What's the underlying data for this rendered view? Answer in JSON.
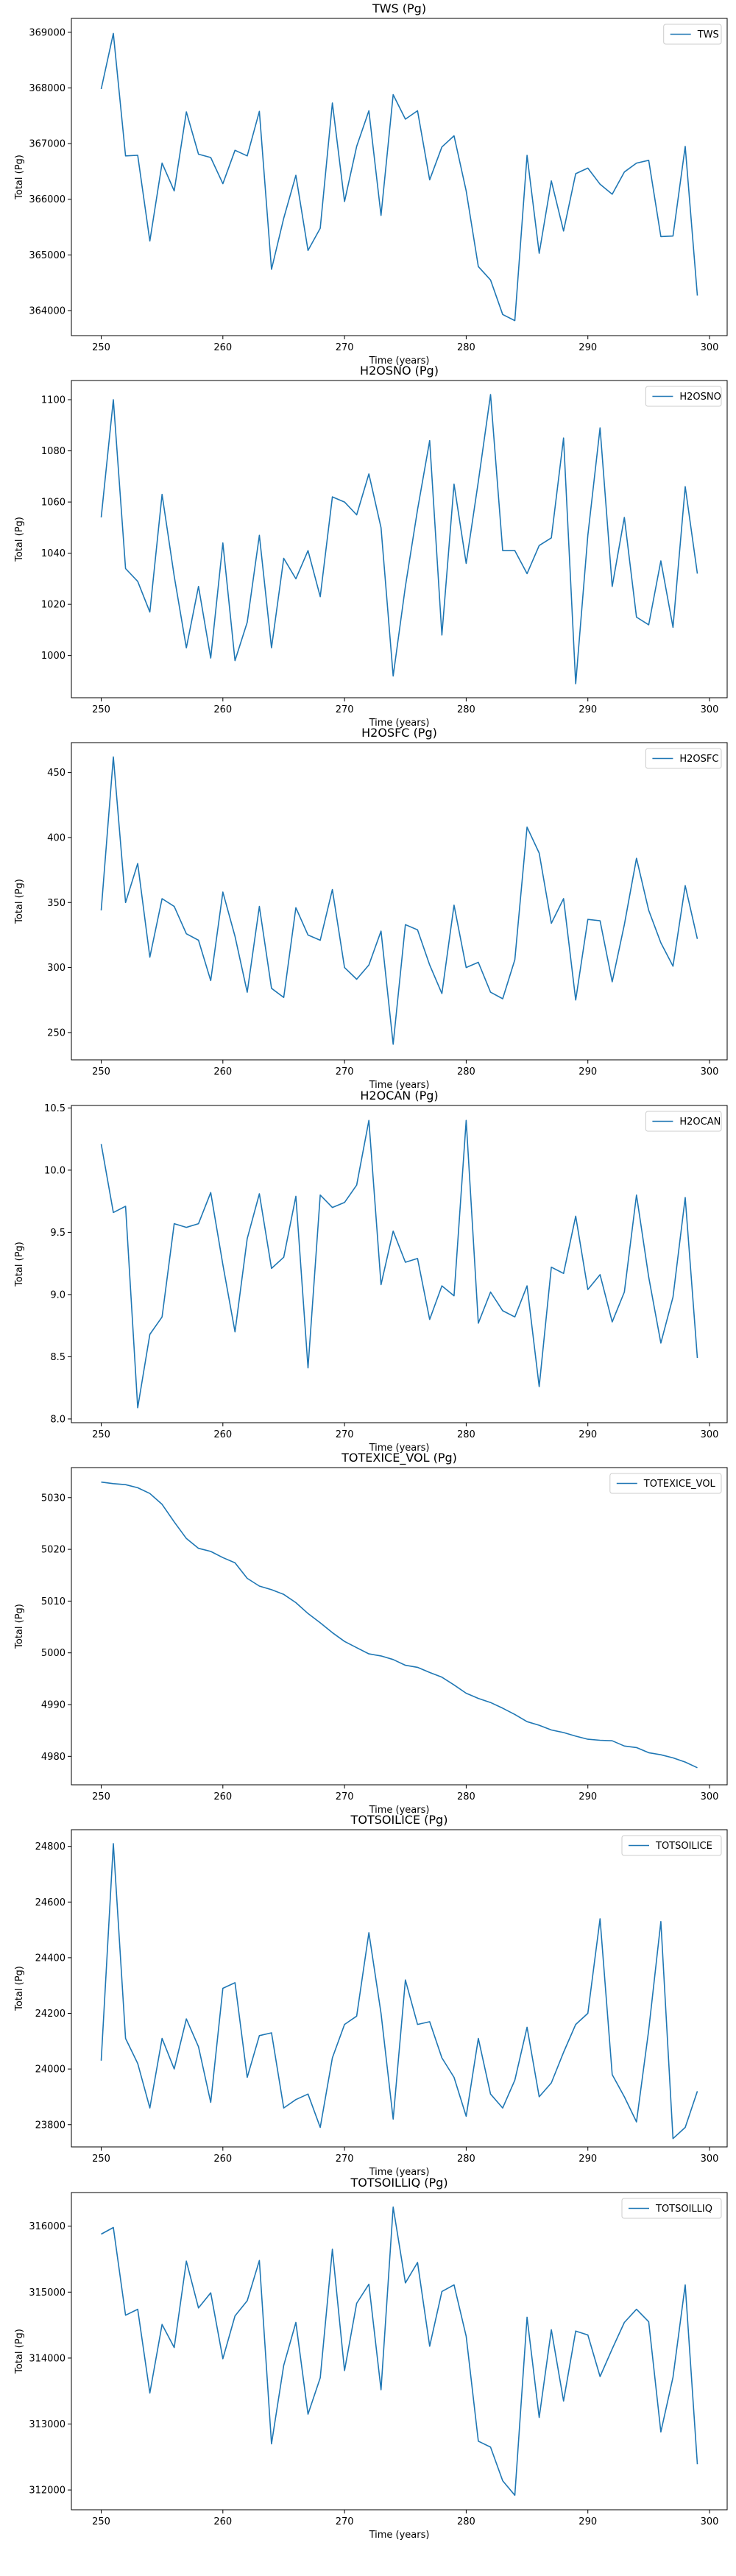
{
  "chart_data": [
    {
      "type": "line",
      "title": "TWS (Pg)",
      "xlabel": "Time (years)",
      "ylabel": "Total (Pg)",
      "xlim": [
        247.55,
        301.45
      ],
      "ylim": [
        363550,
        369250
      ],
      "xticks": [
        250,
        260,
        270,
        280,
        290,
        300
      ],
      "yticks": [
        364000,
        365000,
        366000,
        367000,
        368000,
        369000
      ],
      "legend": "upper right",
      "color": "#1f77b4",
      "series": [
        {
          "name": "TWS",
          "x": [
            250,
            251,
            252,
            253,
            254,
            255,
            256,
            257,
            258,
            259,
            260,
            261,
            262,
            263,
            264,
            265,
            266,
            267,
            268,
            269,
            270,
            271,
            272,
            273,
            274,
            275,
            276,
            277,
            278,
            279,
            280,
            281,
            282,
            283,
            284,
            285,
            286,
            287,
            288,
            289,
            290,
            291,
            292,
            293,
            294,
            295,
            296,
            297,
            298,
            299
          ],
          "values": [
            367980,
            368980,
            366780,
            366790,
            365250,
            366650,
            366150,
            367570,
            366810,
            366750,
            366280,
            366880,
            366780,
            367580,
            364740,
            365660,
            366430,
            365080,
            365480,
            367730,
            365960,
            366950,
            367590,
            365710,
            367880,
            367440,
            367590,
            366350,
            366940,
            367140,
            366150,
            364790,
            364550,
            363930,
            363820,
            366790,
            365030,
            366330,
            365430,
            366460,
            366560,
            366270,
            366090,
            366490,
            366650,
            366700,
            365330,
            365340,
            366950,
            364270
          ]
        }
      ]
    },
    {
      "type": "line",
      "title": "H2OSNO (Pg)",
      "xlabel": "Time (years)",
      "ylabel": "Total (Pg)",
      "xlim": [
        247.55,
        301.45
      ],
      "ylim": [
        983.5,
        1107.5
      ],
      "xticks": [
        250,
        260,
        270,
        280,
        290,
        300
      ],
      "yticks": [
        1000,
        1020,
        1040,
        1060,
        1080,
        1100
      ],
      "legend": "upper right",
      "color": "#1f77b4",
      "series": [
        {
          "name": "H2OSNO",
          "x": [
            250,
            251,
            252,
            253,
            254,
            255,
            256,
            257,
            258,
            259,
            260,
            261,
            262,
            263,
            264,
            265,
            266,
            267,
            268,
            269,
            270,
            271,
            272,
            273,
            274,
            275,
            276,
            277,
            278,
            279,
            280,
            281,
            282,
            283,
            284,
            285,
            286,
            287,
            288,
            289,
            290,
            291,
            292,
            293,
            294,
            295,
            296,
            297,
            298,
            299
          ],
          "values": [
            1054,
            1100,
            1034,
            1029,
            1017,
            1063,
            1031,
            1003,
            1027,
            999,
            1044,
            998,
            1013,
            1047,
            1003,
            1038,
            1030,
            1041,
            1023,
            1062,
            1060,
            1055,
            1071,
            1050,
            992,
            1027,
            1057,
            1084,
            1008,
            1067,
            1036,
            1068,
            1102,
            1041,
            1041,
            1032,
            1043,
            1046,
            1085,
            989,
            1047,
            1089,
            1027,
            1054,
            1015,
            1012,
            1037,
            1011,
            1066,
            1032
          ]
        }
      ]
    },
    {
      "type": "line",
      "title": "H2OSFC (Pg)",
      "xlabel": "Time (years)",
      "ylabel": "Total (Pg)",
      "xlim": [
        247.55,
        301.45
      ],
      "ylim": [
        229,
        473
      ],
      "xticks": [
        250,
        260,
        270,
        280,
        290,
        300
      ],
      "yticks": [
        250,
        300,
        350,
        400,
        450
      ],
      "legend": "upper right",
      "color": "#1f77b4",
      "series": [
        {
          "name": "H2OSFC",
          "x": [
            250,
            251,
            252,
            253,
            254,
            255,
            256,
            257,
            258,
            259,
            260,
            261,
            262,
            263,
            264,
            265,
            266,
            267,
            268,
            269,
            270,
            271,
            272,
            273,
            274,
            275,
            276,
            277,
            278,
            279,
            280,
            281,
            282,
            283,
            284,
            285,
            286,
            287,
            288,
            289,
            290,
            291,
            292,
            293,
            294,
            295,
            296,
            297,
            298,
            299
          ],
          "values": [
            344,
            462,
            350,
            380,
            308,
            353,
            347,
            326,
            321,
            290,
            358,
            324,
            281,
            347,
            284,
            277,
            346,
            325,
            321,
            360,
            300,
            291,
            302,
            328,
            241,
            333,
            329,
            302,
            280,
            348,
            300,
            304,
            281,
            276,
            306,
            408,
            388,
            334,
            353,
            275,
            337,
            336,
            289,
            333,
            384,
            344,
            319,
            301,
            363,
            322
          ]
        }
      ]
    },
    {
      "type": "line",
      "title": "H2OCAN (Pg)",
      "xlabel": "Time (years)",
      "ylabel": "Total (Pg)",
      "xlim": [
        247.55,
        301.45
      ],
      "ylim": [
        7.97,
        10.52
      ],
      "xticks": [
        250,
        260,
        270,
        280,
        290,
        300
      ],
      "yticks": [
        8.0,
        8.5,
        9.0,
        9.5,
        10.0,
        10.5
      ],
      "ytick_labels": [
        "8.0",
        "8.5",
        "9.0",
        "9.5",
        "10.0",
        "10.5"
      ],
      "legend": "upper right",
      "color": "#1f77b4",
      "series": [
        {
          "name": "H2OCAN",
          "x": [
            250,
            251,
            252,
            253,
            254,
            255,
            256,
            257,
            258,
            259,
            260,
            261,
            262,
            263,
            264,
            265,
            266,
            267,
            268,
            269,
            270,
            271,
            272,
            273,
            274,
            275,
            276,
            277,
            278,
            279,
            280,
            281,
            282,
            283,
            284,
            285,
            286,
            287,
            288,
            289,
            290,
            291,
            292,
            293,
            294,
            295,
            296,
            297,
            298,
            299
          ],
          "values": [
            10.21,
            9.66,
            9.71,
            8.09,
            8.68,
            8.82,
            9.57,
            9.54,
            9.57,
            9.82,
            9.24,
            8.7,
            9.45,
            9.81,
            9.21,
            9.3,
            9.79,
            8.41,
            9.8,
            9.7,
            9.74,
            9.88,
            10.4,
            9.08,
            9.51,
            9.26,
            9.29,
            8.8,
            9.07,
            8.99,
            10.4,
            8.77,
            9.02,
            8.87,
            8.82,
            9.07,
            8.26,
            9.22,
            9.17,
            9.63,
            9.04,
            9.16,
            8.78,
            9.02,
            9.8,
            9.14,
            8.61,
            8.98,
            9.78,
            8.49
          ]
        }
      ]
    },
    {
      "type": "line",
      "title": "TOTEXICE_VOL (Pg)",
      "xlabel": "Time (years)",
      "ylabel": "Total (Pg)",
      "xlim": [
        247.55,
        301.45
      ],
      "ylim": [
        4974.5,
        5035.8
      ],
      "xticks": [
        250,
        260,
        270,
        280,
        290,
        300
      ],
      "yticks": [
        4980,
        4990,
        5000,
        5010,
        5020,
        5030
      ],
      "legend": "upper right",
      "color": "#1f77b4",
      "series": [
        {
          "name": "TOTEXICE_VOL",
          "x": [
            250,
            251,
            252,
            253,
            254,
            255,
            256,
            257,
            258,
            259,
            260,
            261,
            262,
            263,
            264,
            265,
            266,
            267,
            268,
            269,
            270,
            271,
            272,
            273,
            274,
            275,
            276,
            277,
            278,
            279,
            280,
            281,
            282,
            283,
            284,
            285,
            286,
            287,
            288,
            289,
            290,
            291,
            292,
            293,
            294,
            295,
            296,
            297,
            298,
            299
          ],
          "values": [
            5033.0,
            5032.7,
            5032.5,
            5031.9,
            5030.8,
            5028.7,
            5025.3,
            5022.1,
            5020.2,
            5019.6,
            5018.4,
            5017.4,
            5014.4,
            5012.9,
            5012.2,
            5011.3,
            5009.7,
            5007.6,
            5005.8,
            5003.9,
            5002.2,
            5001.0,
            4999.8,
            4999.4,
            4998.7,
            4997.6,
            4997.2,
            4996.2,
            4995.3,
            4993.8,
            4992.2,
            4991.2,
            4990.4,
            4989.3,
            4988.1,
            4986.7,
            4986.0,
            4985.1,
            4984.6,
            4983.9,
            4983.3,
            4983.1,
            4983.0,
            4982.0,
            4981.7,
            4980.7,
            4980.3,
            4979.7,
            4978.9,
            4977.8
          ]
        }
      ]
    },
    {
      "type": "line",
      "title": "TOTSOILICE (Pg)",
      "xlabel": "Time (years)",
      "ylabel": "Total (Pg)",
      "xlim": [
        247.55,
        301.45
      ],
      "ylim": [
        23720,
        24860
      ],
      "xticks": [
        250,
        260,
        270,
        280,
        290,
        300
      ],
      "yticks": [
        23800,
        24000,
        24200,
        24400,
        24600,
        24800
      ],
      "legend": "upper right",
      "color": "#1f77b4",
      "series": [
        {
          "name": "TOTSOILICE",
          "x": [
            250,
            251,
            252,
            253,
            254,
            255,
            256,
            257,
            258,
            259,
            260,
            261,
            262,
            263,
            264,
            265,
            266,
            267,
            268,
            269,
            270,
            271,
            272,
            273,
            274,
            275,
            276,
            277,
            278,
            279,
            280,
            281,
            282,
            283,
            284,
            285,
            286,
            287,
            288,
            289,
            290,
            291,
            292,
            293,
            294,
            295,
            296,
            297,
            298,
            299
          ],
          "values": [
            24030,
            24810,
            24110,
            24020,
            23860,
            24110,
            24000,
            24180,
            24080,
            23880,
            24290,
            24310,
            23970,
            24120,
            24130,
            23860,
            23890,
            23910,
            23790,
            24040,
            24160,
            24190,
            24490,
            24200,
            23820,
            24320,
            24160,
            24170,
            24040,
            23970,
            23830,
            24110,
            23910,
            23860,
            23960,
            24150,
            23900,
            23950,
            24060,
            24160,
            24200,
            24540,
            23980,
            23900,
            23810,
            24140,
            24530,
            23750,
            23790,
            23920
          ]
        }
      ]
    },
    {
      "type": "line",
      "title": "TOTSOILLIQ (Pg)",
      "xlabel": "Time (years)",
      "ylabel": "Total (Pg)",
      "xlim": [
        247.55,
        301.45
      ],
      "ylim": [
        311700,
        316510
      ],
      "xticks": [
        250,
        260,
        270,
        280,
        290,
        300
      ],
      "yticks": [
        312000,
        313000,
        314000,
        315000,
        316000
      ],
      "legend": "upper right",
      "color": "#1f77b4",
      "series": [
        {
          "name": "TOTSOILLIQ",
          "x": [
            250,
            251,
            252,
            253,
            254,
            255,
            256,
            257,
            258,
            259,
            260,
            261,
            262,
            263,
            264,
            265,
            266,
            267,
            268,
            269,
            270,
            271,
            272,
            273,
            274,
            275,
            276,
            277,
            278,
            279,
            280,
            281,
            282,
            283,
            284,
            285,
            286,
            287,
            288,
            289,
            290,
            291,
            292,
            293,
            294,
            295,
            296,
            297,
            298,
            299
          ],
          "values": [
            315880,
            315980,
            314650,
            314740,
            313470,
            314510,
            314160,
            315470,
            314760,
            314990,
            313990,
            314640,
            314870,
            315480,
            312700,
            313890,
            314540,
            313150,
            313700,
            315650,
            313810,
            314830,
            315120,
            313520,
            316290,
            315140,
            315450,
            314180,
            315010,
            315110,
            314330,
            312740,
            312650,
            312140,
            311920,
            314620,
            313100,
            314430,
            313350,
            314410,
            314350,
            313720,
            314140,
            314540,
            314740,
            314550,
            312880,
            313710,
            315110,
            312390
          ]
        }
      ]
    }
  ]
}
